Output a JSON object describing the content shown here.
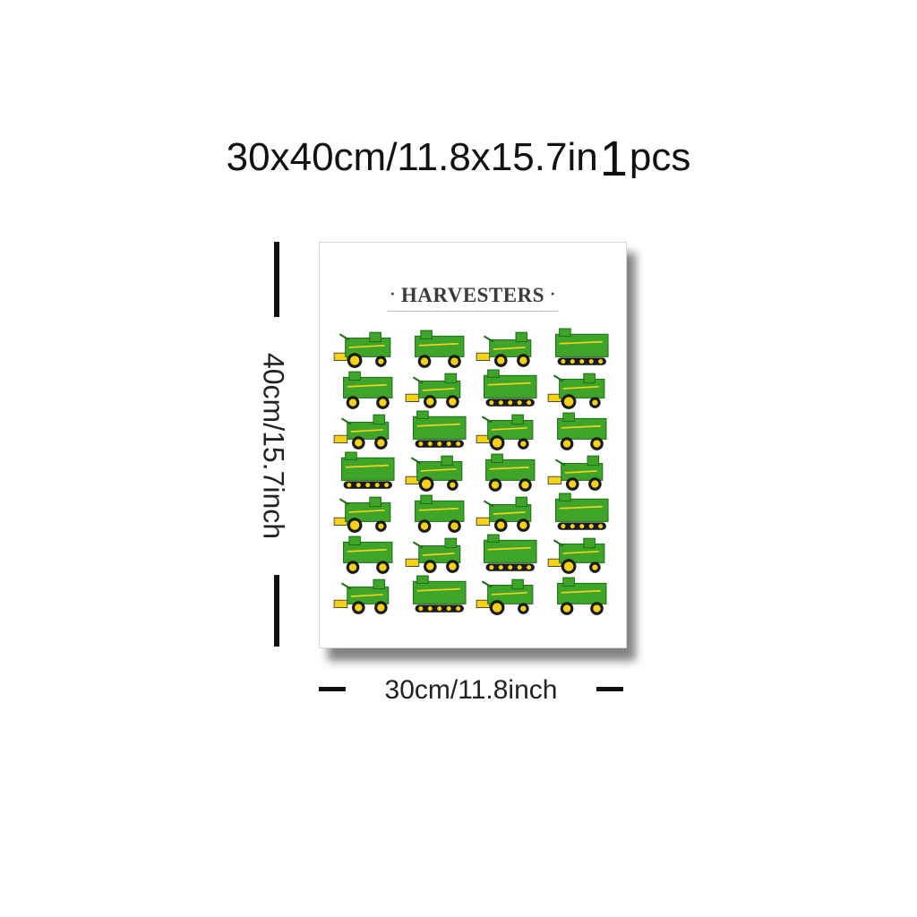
{
  "size_title": {
    "text": "30x40cm/11.8x15.7in",
    "qty": "1",
    "unit": "pcs"
  },
  "poster": {
    "title": "HARVESTERS",
    "title_dot": "·",
    "machine_count": 28
  },
  "dimensions": {
    "height_label": "40cm/15.7inch",
    "width_label": "30cm/11.8inch"
  },
  "colors": {
    "machine_green": "#3fa52a",
    "dark_green": "#1f6e17",
    "machine_yellow": "#f4d21a",
    "tire": "#1a1a1a"
  }
}
